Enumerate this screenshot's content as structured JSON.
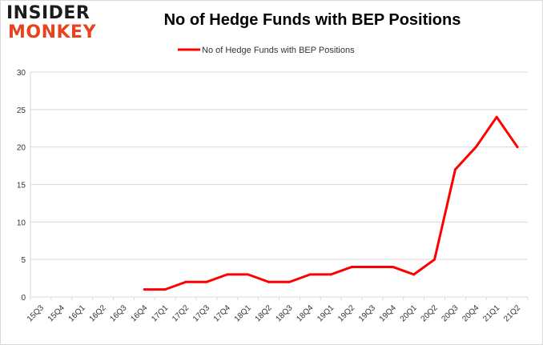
{
  "brand": {
    "line1": "INSIDER",
    "line2": "MONKEY",
    "dark": "#1c1c1c",
    "accent": "#e6431e"
  },
  "chart_data": {
    "type": "line",
    "title": "No of Hedge Funds with BEP Positions",
    "xlabel": "",
    "ylabel": "",
    "ylim": [
      0,
      30
    ],
    "yticks": [
      0,
      5,
      10,
      15,
      20,
      25,
      30
    ],
    "grid": true,
    "legend_position": "top-center",
    "categories": [
      "15Q3",
      "15Q4",
      "16Q1",
      "16Q2",
      "16Q3",
      "16Q4",
      "17Q1",
      "17Q2",
      "17Q3",
      "17Q4",
      "18Q1",
      "18Q2",
      "18Q3",
      "18Q4",
      "19Q1",
      "19Q2",
      "19Q3",
      "19Q4",
      "20Q1",
      "20Q2",
      "20Q3",
      "20Q4",
      "21Q1",
      "21Q2"
    ],
    "series": [
      {
        "name": "No of Hedge Funds with BEP Positions",
        "color": "#ff0000",
        "values": [
          null,
          null,
          null,
          null,
          null,
          1,
          1,
          2,
          2,
          3,
          3,
          2,
          2,
          3,
          3,
          4,
          4,
          4,
          3,
          5,
          17,
          20,
          24,
          20
        ]
      }
    ]
  }
}
